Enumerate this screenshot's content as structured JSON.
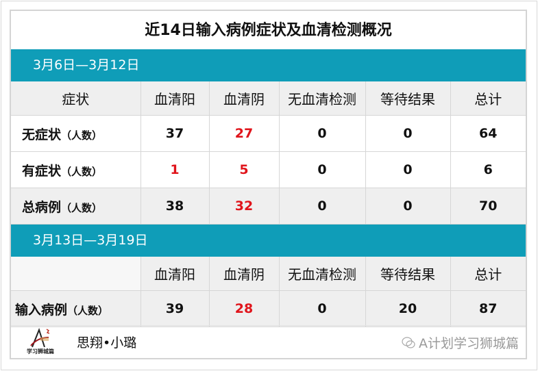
{
  "title": "近14日输入病例症状及血清检测概况",
  "colors": {
    "band": "#0f9db8",
    "negative_highlight": "#e0141b"
  },
  "section1": {
    "period": "3月6日—3月12日",
    "headers": [
      "症状",
      "血清阳",
      "血清阴",
      "无血清检测",
      "等待结果",
      "总计"
    ],
    "rows": [
      {
        "label": "无症状",
        "unit": "（人数）",
        "values": [
          "37",
          "27",
          "0",
          "0",
          "64"
        ]
      },
      {
        "label": "有症状",
        "unit": "（人数）",
        "values": [
          "1",
          "5",
          "0",
          "0",
          "6"
        ]
      },
      {
        "label": "总病例",
        "unit": "（人数）",
        "values": [
          "38",
          "32",
          "0",
          "0",
          "70"
        ]
      }
    ]
  },
  "section2": {
    "period": "3月13日—3月19日",
    "headers": [
      "",
      "血清阳",
      "血清阴",
      "无血清检测",
      "等待结果",
      "总计"
    ],
    "rows": [
      {
        "label": "输入病例",
        "unit": "（人数）",
        "values": [
          "39",
          "28",
          "0",
          "20",
          "87"
        ]
      }
    ]
  },
  "footer": {
    "logo_text": "学习狮城篇",
    "signature": "思翔•小璐",
    "watermark": "A计划学习狮城篇"
  }
}
